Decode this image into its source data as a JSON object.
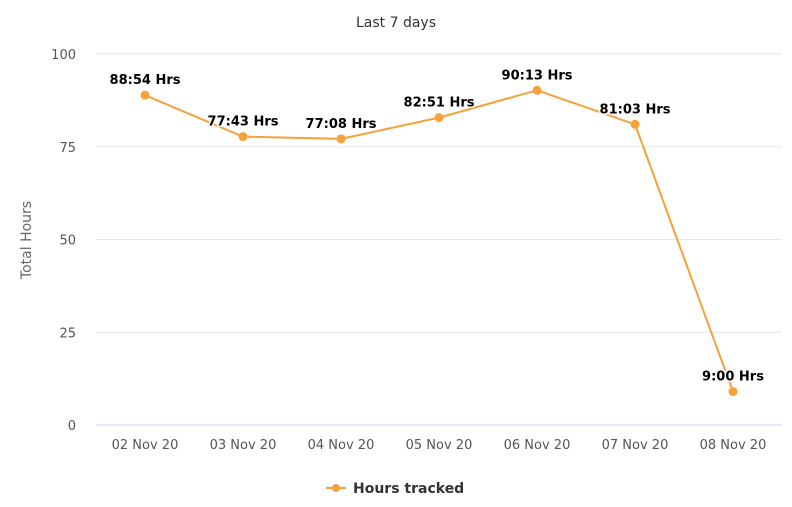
{
  "chart_data": {
    "type": "line",
    "title": "Last 7 days",
    "ylabel": "Total Hours",
    "xlabel": "",
    "categories": [
      "02 Nov 20",
      "03 Nov 20",
      "04 Nov 20",
      "05 Nov 20",
      "06 Nov 20",
      "07 Nov 20",
      "08 Nov 20"
    ],
    "ylim": [
      0,
      100
    ],
    "yticks": [
      "0",
      "25",
      "50",
      "75",
      "100"
    ],
    "grid": true,
    "legend_position": "bottom",
    "series": [
      {
        "name": "Hours tracked",
        "color": "#f7a13a",
        "values": [
          88.9,
          77.72,
          77.13,
          82.85,
          90.22,
          81.05,
          9.0
        ],
        "labels": [
          "88:54 Hrs",
          "77:43 Hrs",
          "77:08 Hrs",
          "82:51 Hrs",
          "90:13 Hrs",
          "81:03 Hrs",
          "9:00 Hrs"
        ]
      }
    ]
  }
}
